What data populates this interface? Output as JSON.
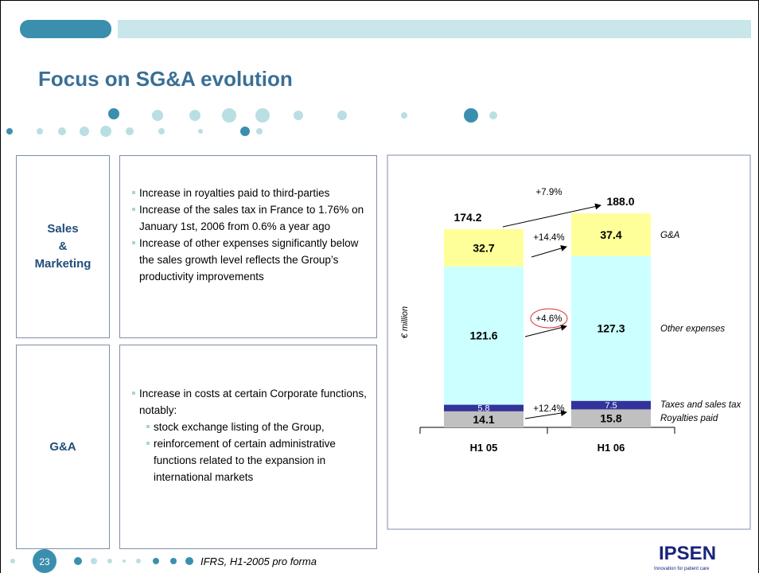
{
  "title": "Focus on SG&A evolution",
  "sections": [
    {
      "label_lines": [
        "Sales",
        "&",
        "Marketing"
      ],
      "bullets": [
        {
          "text": "Increase in royalties paid to third-parties"
        },
        {
          "text": "Increase of the sales tax in France to 1.76% on January 1st, 2006 from 0.6% a year ago"
        },
        {
          "text": "Increase of other expenses significantly below the sales growth level reflects the Group’s productivity improvements"
        }
      ]
    },
    {
      "label_lines": [
        "G&A"
      ],
      "bullets": [
        {
          "text": "Increase in costs at certain Corporate functions, notably:",
          "sub": [
            "stock exchange listing of the Group,",
            "reinforcement of certain administrative functions related to the expansion in international markets"
          ]
        }
      ]
    }
  ],
  "footer": {
    "page": "23",
    "note": "IFRS, H1-2005 pro forma",
    "logo": "IPSEN",
    "tagline": "Innovation for patient care"
  },
  "chart_data": {
    "type": "stacked_bar",
    "y_label": "€ million",
    "categories": [
      "H1 05",
      "H1 06"
    ],
    "series": [
      {
        "name": "Royalties paid",
        "color": "#c0c0c0",
        "values": [
          14.1,
          15.8
        ]
      },
      {
        "name": "Taxes and sales tax",
        "color": "#33339a",
        "values": [
          5.8,
          7.5
        ]
      },
      {
        "name": "Other expenses",
        "color": "#ccffff",
        "values": [
          121.6,
          127.3
        ]
      },
      {
        "name": "G&A",
        "color": "#ffff99",
        "values": [
          32.7,
          37.4
        ]
      }
    ],
    "totals": [
      174.2,
      188
    ],
    "total_labels": [
      "174.2",
      "188.0"
    ],
    "annotations": [
      "+7.9%",
      "+14.4%",
      "+4.6%",
      "+12.4%"
    ]
  }
}
